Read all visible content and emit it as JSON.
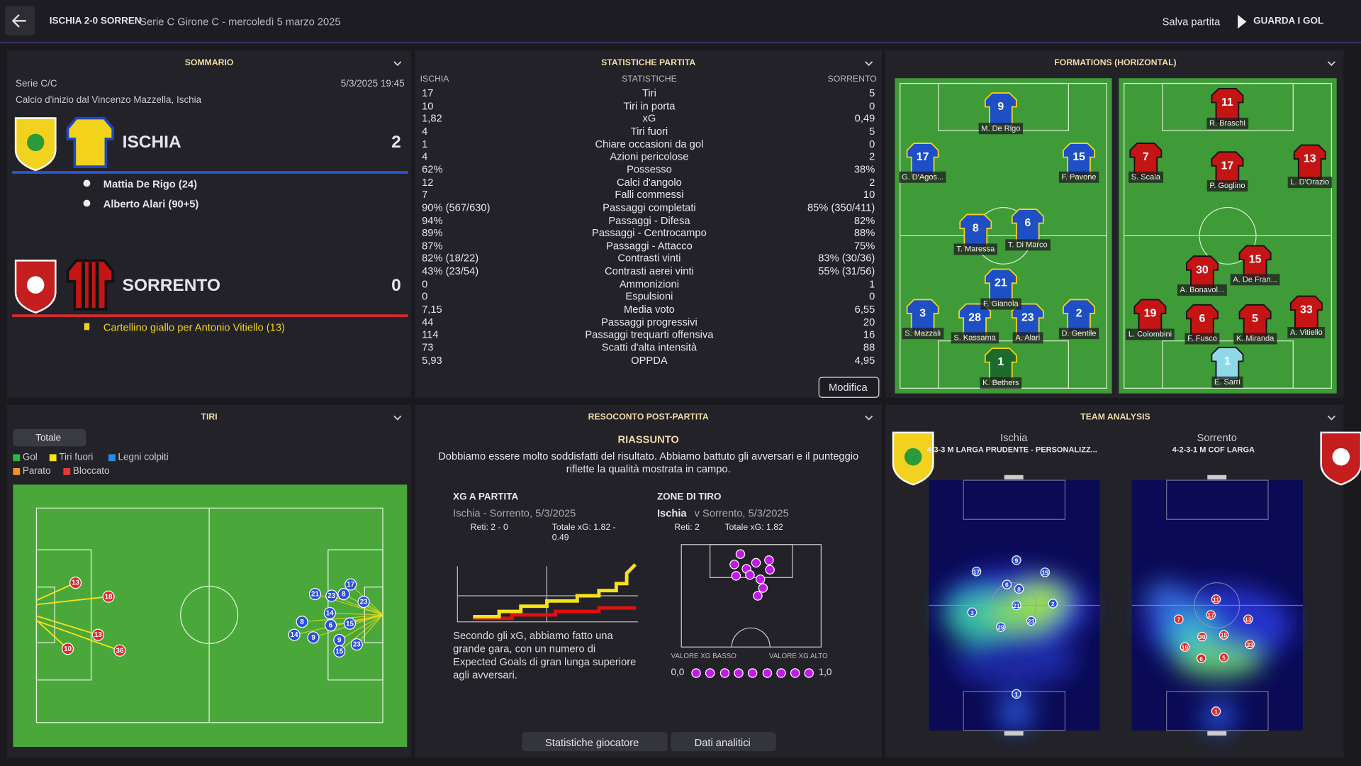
{
  "header": {
    "match": "ISCHIA 2-0 SORREN",
    "subtitle": "Serie C Girone C - mercoledì 5 marzo 2025",
    "save": "Salva partita",
    "watch": "GUARDA I GOL"
  },
  "summary": {
    "title": "SOMMARIO",
    "competition": "Serie C/C",
    "datetime": "5/3/2025 19:45",
    "venue": "Calcio d'inizio dal Vincenzo Mazzella, Ischia",
    "home": {
      "name": "ISCHIA",
      "score": "2",
      "events": [
        "Mattia De Rigo (24)",
        "Alberto Alari (90+5)"
      ]
    },
    "away": {
      "name": "SORRENTO",
      "score": "0",
      "events": [
        "Cartellino giallo per Antonio Vitiello (13)"
      ]
    }
  },
  "stats": {
    "title": "STATISTICHE PARTITA",
    "columns": [
      "ISCHIA",
      "STATISTICHE",
      "SORRENTO"
    ],
    "button": "Modifica",
    "rows": [
      [
        "17",
        "Tiri",
        "5"
      ],
      [
        "10",
        "Tiri in porta",
        "0"
      ],
      [
        "1,82",
        "xG",
        "0,49"
      ],
      [
        "4",
        "Tiri fuori",
        "5"
      ],
      [
        "1",
        "Chiare occasioni da gol",
        "0"
      ],
      [
        "4",
        "Azioni pericolose",
        "2"
      ],
      [
        "62%",
        "Possesso",
        "38%"
      ],
      [
        "12",
        "Calci d'angolo",
        "2"
      ],
      [
        "7",
        "Falli commessi",
        "10"
      ],
      [
        "90% (567/630)",
        "Passaggi completati",
        "85% (350/411)"
      ],
      [
        "94%",
        "Passaggi - Difesa",
        "82%"
      ],
      [
        "89%",
        "Passaggi - Centrocampo",
        "88%"
      ],
      [
        "87%",
        "Passaggi - Attacco",
        "75%"
      ],
      [
        "82% (18/22)",
        "Contrasti vinti",
        "83% (30/36)"
      ],
      [
        "43% (23/54)",
        "Contrasti aerei vinti",
        "55% (31/56)"
      ],
      [
        "0",
        "Ammonizioni",
        "1"
      ],
      [
        "0",
        "Espulsioni",
        "0"
      ],
      [
        "7,15",
        "Media voto",
        "6,55"
      ],
      [
        "44",
        "Passaggi progressivi",
        "20"
      ],
      [
        "114",
        "Passaggi trequarti offensiva",
        "16"
      ],
      [
        "73",
        "Scatti d'alta intensità",
        "88"
      ],
      [
        "5,93",
        "OPPDA",
        "4,95"
      ]
    ]
  },
  "formations": {
    "title": "FORMATIONS (HORIZONTAL)",
    "home": [
      {
        "number": "9",
        "name": "M. De Rigo"
      },
      {
        "number": "17",
        "name": "G. D'Agos..."
      },
      {
        "number": "15",
        "name": "F. Pavone"
      },
      {
        "number": "8",
        "name": "T. Maressa"
      },
      {
        "number": "6",
        "name": "T. Di Marco"
      },
      {
        "number": "21",
        "name": "F. Gianola"
      },
      {
        "number": "3",
        "name": "S. Mazzali"
      },
      {
        "number": "28",
        "name": "S. Kassama"
      },
      {
        "number": "23",
        "name": "A. Alari"
      },
      {
        "number": "2",
        "name": "D. Gentile"
      },
      {
        "number": "1",
        "name": "K. Bethers"
      }
    ],
    "away": [
      {
        "number": "11",
        "name": "R. Braschi"
      },
      {
        "number": "7",
        "name": "S. Scala"
      },
      {
        "number": "17",
        "name": "P. Goglino"
      },
      {
        "number": "13",
        "name": "L. D'Orazio"
      },
      {
        "number": "30",
        "name": "A. Bonavol..."
      },
      {
        "number": "15",
        "name": "A. De Fran..."
      },
      {
        "number": "19",
        "name": "L. Colombini"
      },
      {
        "number": "6",
        "name": "F. Fusco"
      },
      {
        "number": "5",
        "name": "K. Miranda"
      },
      {
        "number": "33",
        "name": "A. Vitiello"
      },
      {
        "number": "1",
        "name": "E. Sarri"
      }
    ]
  },
  "shots": {
    "title": "TIRI",
    "filter": "Totale",
    "legend": [
      "Gol",
      "Tiri fuori",
      "Legni colpiti",
      "Parato",
      "Bloccato"
    ],
    "away": [
      "13",
      "18",
      "13",
      "10",
      "36"
    ],
    "home": [
      "17",
      "21",
      "23",
      "8",
      "23",
      "8",
      "14",
      "6",
      "15",
      "14",
      "9",
      "9",
      "15",
      "23"
    ]
  },
  "report": {
    "title": "RESOCONTO POST-PARTITA",
    "heading": "RIASSUNTO",
    "text": "Dobbiamo essere molto soddisfatti del risultato. Abbiamo battuto gli avversari e il punteggio riflette la qualità mostrata in campo.",
    "xg": {
      "title": "XG A PARTITA",
      "match": "Ischia - Sorrento, 5/3/2025",
      "goals": "Reti: 2 - 0",
      "total": "Totale xG: 1.82 - 0.49",
      "comment": "Secondo gli xG, abbiamo fatto una grande gara, con un numero di Expected Goals di gran lunga superiore agli avversari."
    },
    "zones": {
      "title": "ZONE DI TIRO",
      "team": "Ischia",
      "match": "v Sorrento, 5/3/2025",
      "goals": "Reti: 2",
      "total": "Totale xG: 1.82",
      "low": "VALORE XG BASSO",
      "high": "VALORE XG ALTO",
      "min": "0,0",
      "max": "1,0"
    },
    "buttons": [
      "Statistiche giocatore",
      "Dati analitici"
    ]
  },
  "analysis": {
    "title": "TEAM ANALYSIS",
    "home": {
      "name": "Ischia",
      "tactic": "4-3-3 M LARGA PRUDENTE - PERSONALIZZ..."
    },
    "away": {
      "name": "Sorrento",
      "tactic": "4-2-3-1 M COF LARGA"
    },
    "home_numbers": [
      "9",
      "17",
      "15",
      "6",
      "8",
      "3",
      "21",
      "2",
      "28",
      "23",
      "1"
    ],
    "away_numbers": [
      "11",
      "7",
      "17",
      "13",
      "30",
      "15",
      "33",
      "19",
      "6",
      "5",
      "1"
    ]
  }
}
